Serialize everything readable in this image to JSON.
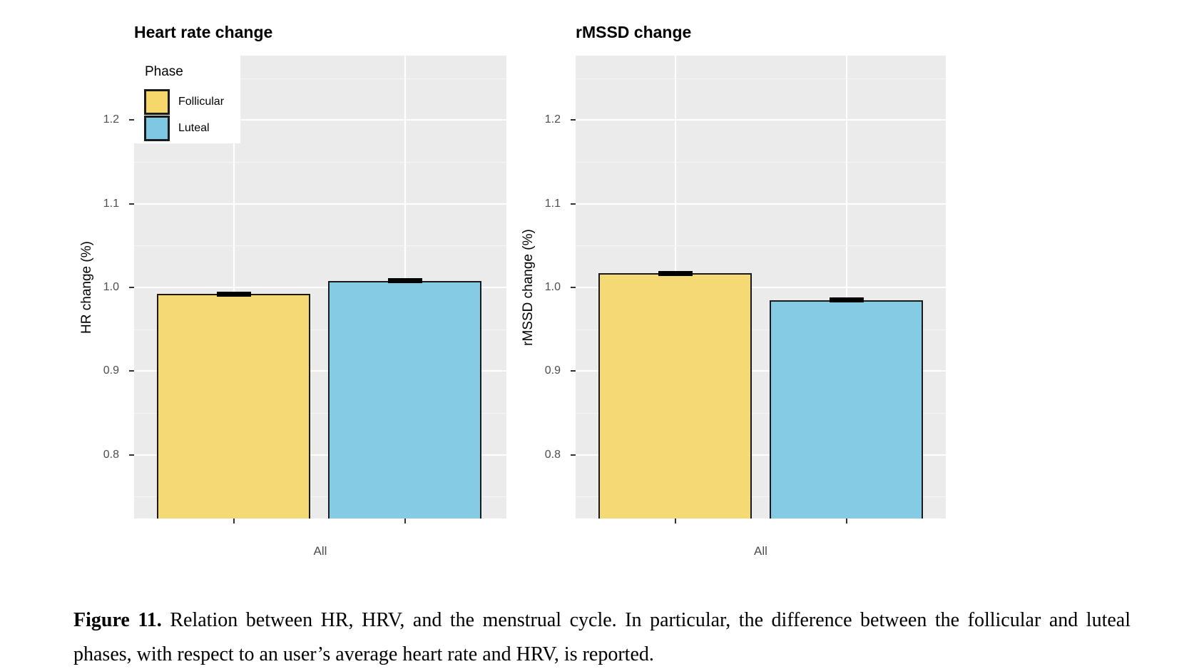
{
  "figure": {
    "caption_label": "Figure 11.",
    "caption_text": " Relation between HR, HRV, and the menstrual cycle. In particular, the difference between the follicular and luteal phases, with respect to an user’s average heart rate and HRV, is reported."
  },
  "legend": {
    "title": "Phase",
    "items": [
      {
        "label": "Follicular",
        "color": "#F5D76B"
      },
      {
        "label": "Luteal",
        "color": "#7EC8E3"
      }
    ]
  },
  "colors": {
    "panel_background": "#EBEBEB",
    "major_gridline": "#FFFFFF",
    "bar_outline": "#1A1A1A",
    "tick_text": "#4D4D4D"
  },
  "chart_data": [
    {
      "type": "bar",
      "title": "Heart rate change",
      "xlabel": "",
      "ylabel": "HR change (%)",
      "categories": [
        "All"
      ],
      "series": [
        {
          "name": "Follicular",
          "values": [
            0.992
          ],
          "error_half": [
            0.003
          ],
          "color": "#F5D76B"
        },
        {
          "name": "Luteal",
          "values": [
            1.008
          ],
          "error_half": [
            0.003
          ],
          "color": "#7EC8E3"
        }
      ],
      "yticks": [
        0.8,
        0.9,
        1.0,
        1.1,
        1.2
      ],
      "yminorticks": [
        0.75,
        0.85,
        0.95,
        1.05,
        1.15,
        1.25
      ],
      "ylim": [
        0.724,
        1.277
      ],
      "grid": true,
      "legend_position": "top-left-inset"
    },
    {
      "type": "bar",
      "title": "rMSSD change",
      "xlabel": "",
      "ylabel": "rMSSD change (%)",
      "categories": [
        "All"
      ],
      "series": [
        {
          "name": "Follicular",
          "values": [
            1.017
          ],
          "error_half": [
            0.003
          ],
          "color": "#F5D76B"
        },
        {
          "name": "Luteal",
          "values": [
            0.985
          ],
          "error_half": [
            0.003
          ],
          "color": "#7EC8E3"
        }
      ],
      "yticks": [
        0.8,
        0.9,
        1.0,
        1.1,
        1.2
      ],
      "yminorticks": [
        0.75,
        0.85,
        0.95,
        1.05,
        1.15,
        1.25
      ],
      "ylim": [
        0.724,
        1.277
      ],
      "grid": true,
      "legend_position": "none"
    }
  ]
}
